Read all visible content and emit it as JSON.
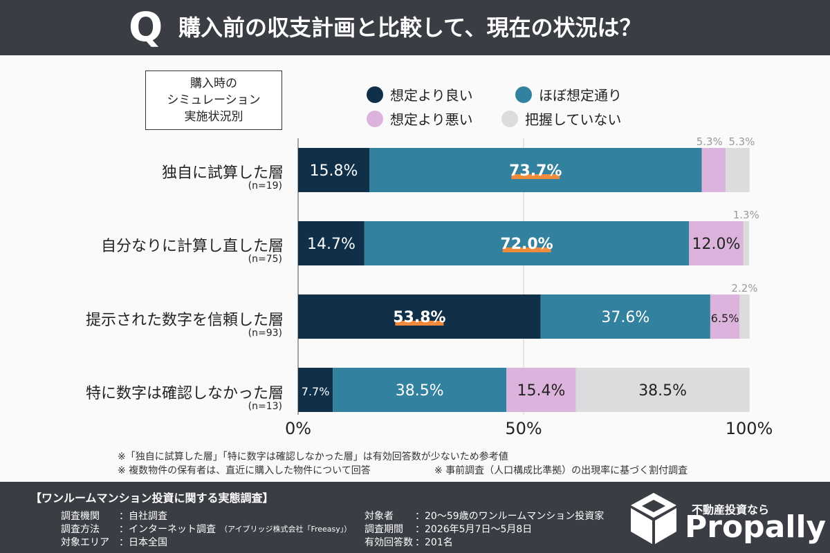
{
  "header": {
    "q": "Q",
    "title": "購入前の収支計画と比較して、現在の状況は？"
  },
  "group_box": {
    "lines": [
      "購入時の",
      "シミュレーション",
      "実施状況別"
    ]
  },
  "chart_data": {
    "type": "bar",
    "orientation": "horizontal",
    "stacked": true,
    "percent": true,
    "categories": [
      "独自に試算した層",
      "自分なりに計算し直した層",
      "提示された数字を信頼した層",
      "特に数字は確認しなかった層"
    ],
    "category_n": [
      "(n=19)",
      "(n=75)",
      "(n=93)",
      "(n=13)"
    ],
    "series": [
      {
        "name": "想定より良い",
        "color": "#0f3048",
        "values": [
          15.8,
          14.7,
          53.8,
          7.7
        ]
      },
      {
        "name": "ほぼ想定通り",
        "color": "#32819e",
        "values": [
          73.7,
          72.0,
          37.6,
          38.5
        ]
      },
      {
        "name": "想定より悪い",
        "color": "#dcb3dc",
        "values": [
          5.3,
          12.0,
          6.5,
          15.4
        ]
      },
      {
        "name": "把握していない",
        "color": "#dcdcde",
        "values": [
          5.3,
          1.3,
          2.2,
          38.5
        ]
      }
    ],
    "labels": [
      [
        "15.8%",
        "73.7%",
        "5.3%",
        "5.3%"
      ],
      [
        "14.7%",
        "72.0%",
        "12.0%",
        "1.3%"
      ],
      [
        "53.8%",
        "37.6%",
        "6.5%",
        "2.2%"
      ],
      [
        "7.7%",
        "38.5%",
        "15.4%",
        "38.5%"
      ]
    ],
    "highlighted": [
      [
        0,
        1
      ],
      [
        1,
        1
      ],
      [
        2,
        0
      ]
    ],
    "highlight_color": "#f08a3c",
    "xlim": [
      0,
      100
    ],
    "x_ticks": [
      "0%",
      "50%",
      "100%"
    ],
    "legend_position": "top-right"
  },
  "notes": [
    "※「独自に試算した層」「特に数字は確認しなかった層」は有効回答数が少ないため参考値",
    "※ 複数物件の保有者は、直近に購入した物件について回答",
    "※ 事前調査（人口構成比準拠）の出現率に基づく割付調査"
  ],
  "footer": {
    "title": "【ワンルームマンション投資に関する実態調査】",
    "left": [
      {
        "key": "調査機関",
        "value": "：自社調査"
      },
      {
        "key": "調査方法",
        "value": "：インターネット調査",
        "extra": "（アイブリッジ株式会社「Freeasy」）"
      },
      {
        "key": "対象エリア",
        "value": "：日本全国"
      }
    ],
    "right": [
      {
        "key": "対象者",
        "value": "：20～59歳のワンルームマンション投資家"
      },
      {
        "key": "調査期間",
        "value": "：2026年5月7日～5月8日"
      },
      {
        "key": "有効回答数",
        "value": "：201名"
      }
    ],
    "brand_tag": "不動産投資なら",
    "brand": "Propally",
    "brand_icon": "cube-logo-icon"
  }
}
